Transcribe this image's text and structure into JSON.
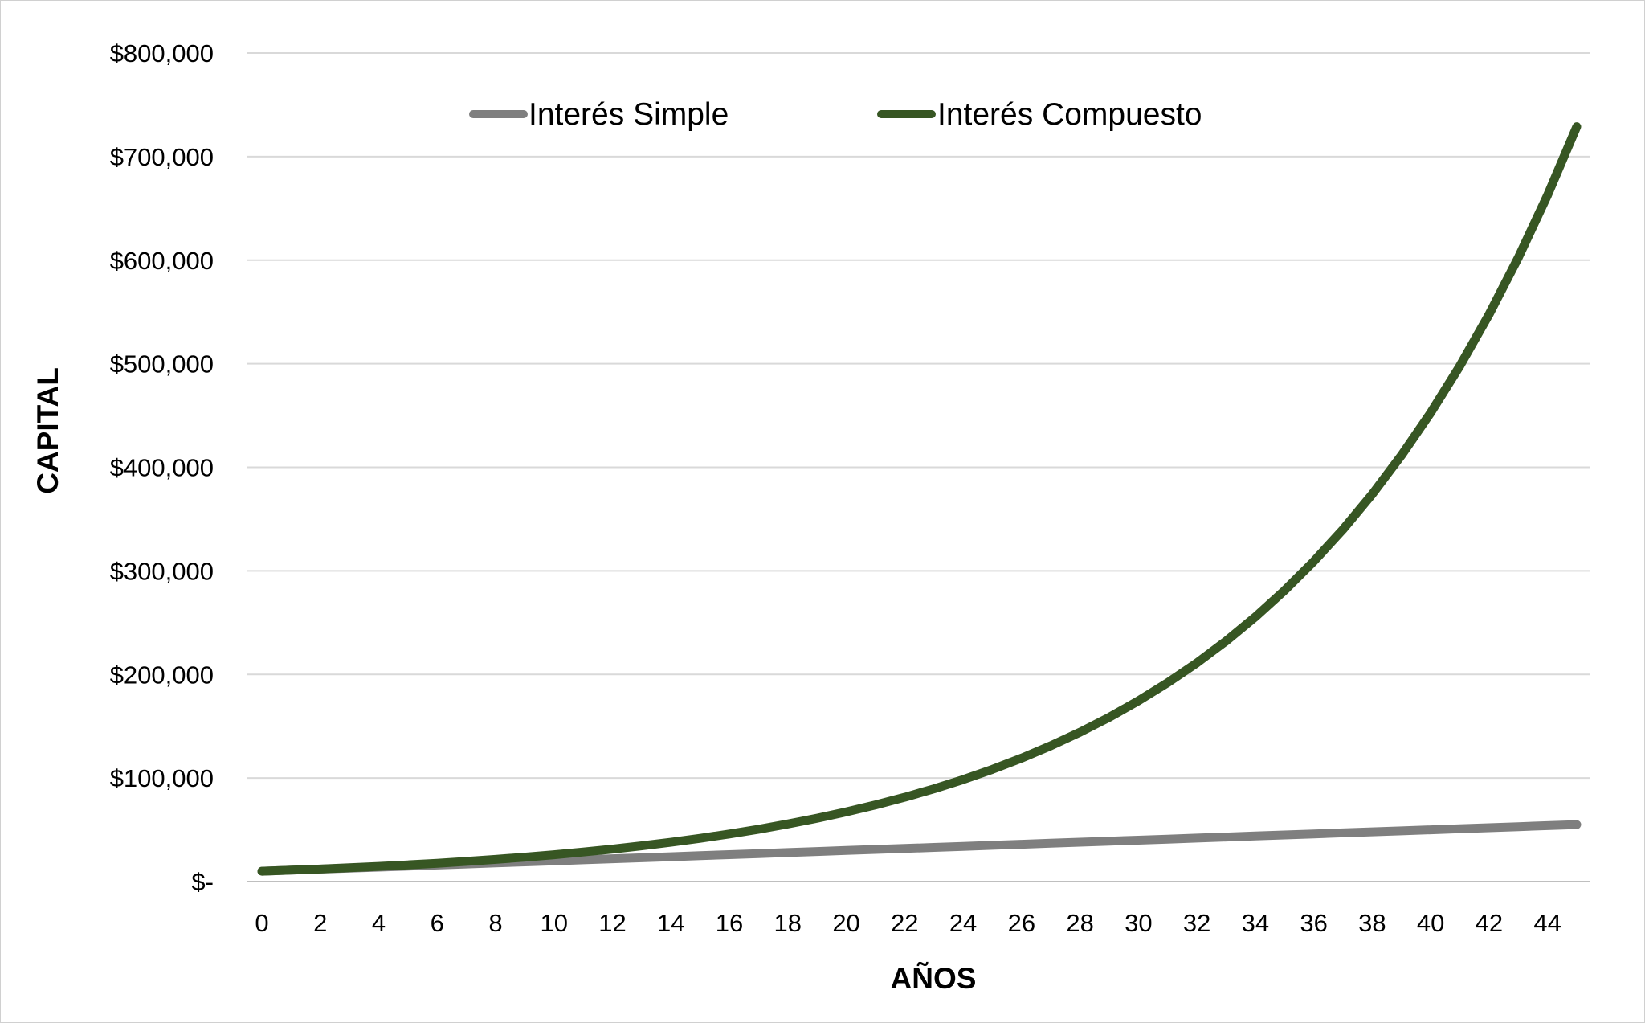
{
  "chart_data": {
    "type": "line",
    "xlabel": "AÑOS",
    "ylabel": "CAPITAL",
    "x": [
      0,
      1,
      2,
      3,
      4,
      5,
      6,
      7,
      8,
      9,
      10,
      11,
      12,
      13,
      14,
      15,
      16,
      17,
      18,
      19,
      20,
      21,
      22,
      23,
      24,
      25,
      26,
      27,
      28,
      29,
      30,
      31,
      32,
      33,
      34,
      35,
      36,
      37,
      38,
      39,
      40,
      41,
      42,
      43,
      44,
      45
    ],
    "x_tick_labels": [
      "0",
      "2",
      "4",
      "6",
      "8",
      "10",
      "12",
      "14",
      "16",
      "18",
      "20",
      "22",
      "24",
      "26",
      "28",
      "30",
      "32",
      "34",
      "36",
      "38",
      "40",
      "42",
      "44"
    ],
    "y_tick_labels": [
      "$-",
      "$100,000",
      "$200,000",
      "$300,000",
      "$400,000",
      "$500,000",
      "$600,000",
      "$700,000",
      "$800,000"
    ],
    "ylim": [
      0,
      800000
    ],
    "grid": true,
    "legend_position": "top",
    "series": [
      {
        "name": "Interés Simple",
        "color": "#7f7f7f",
        "values": [
          10000,
          11000,
          12000,
          13000,
          14000,
          15000,
          16000,
          17000,
          18000,
          19000,
          20000,
          21000,
          22000,
          23000,
          24000,
          25000,
          26000,
          27000,
          28000,
          29000,
          30000,
          31000,
          32000,
          33000,
          34000,
          35000,
          36000,
          37000,
          38000,
          39000,
          40000,
          41000,
          42000,
          43000,
          44000,
          45000,
          46000,
          47000,
          48000,
          49000,
          50000,
          51000,
          52000,
          53000,
          54000,
          55000
        ]
      },
      {
        "name": "Interés Compuesto",
        "color": "#375623",
        "values": [
          10000,
          11000,
          12100,
          13310,
          14641,
          16105,
          17716,
          19487,
          21436,
          23579,
          25937,
          28531,
          31384,
          34523,
          37975,
          41772,
          45950,
          50545,
          55599,
          61159,
          67275,
          74002,
          81403,
          89543,
          98497,
          108347,
          119182,
          131100,
          144210,
          158631,
          174494,
          191943,
          211138,
          232252,
          255477,
          281024,
          309127,
          340039,
          374043,
          411448,
          452593,
          497852,
          547637,
          602401,
          662641,
          728905
        ]
      }
    ]
  }
}
